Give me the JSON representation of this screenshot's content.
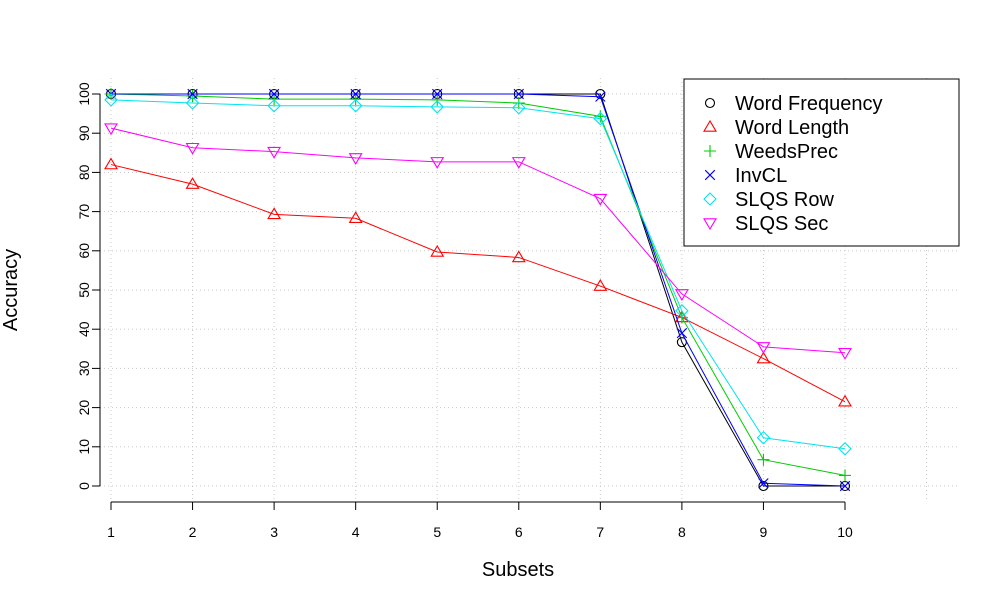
{
  "chart_data": {
    "type": "line",
    "xlabel": "Subsets",
    "ylabel": "Accuracy",
    "x": [
      1,
      2,
      3,
      4,
      5,
      6,
      7,
      8,
      9,
      10
    ],
    "ylim": [
      0,
      100
    ],
    "xlim": [
      1,
      12
    ],
    "yticks": [
      0,
      10,
      20,
      30,
      40,
      50,
      60,
      70,
      80,
      90,
      100
    ],
    "xticks": [
      1,
      2,
      3,
      4,
      5,
      6,
      7,
      8,
      9,
      10
    ],
    "grid": true,
    "legend_position": "top-right",
    "series": [
      {
        "name": "Word Frequency",
        "color": "#000000",
        "marker": "circle",
        "values": [
          100,
          100,
          100,
          100,
          100,
          100,
          100,
          36.7,
          0,
          0
        ]
      },
      {
        "name": "Word Length",
        "color": "#ff0000",
        "marker": "triangle-up",
        "values": [
          82,
          77,
          69.3,
          68.3,
          59.7,
          58.3,
          51,
          43,
          32.5,
          21.5
        ]
      },
      {
        "name": "WeedsPrec",
        "color": "#00cc00",
        "marker": "plus",
        "values": [
          100,
          99.5,
          98.7,
          98.7,
          98.5,
          97.7,
          94.3,
          43,
          6.7,
          2.7
        ]
      },
      {
        "name": "InvCL",
        "color": "#0000ff",
        "marker": "cross",
        "values": [
          100,
          100,
          100,
          100,
          100,
          100,
          99.3,
          39,
          0.7,
          0
        ]
      },
      {
        "name": "SLQS Row",
        "color": "#00e5ee",
        "marker": "diamond",
        "values": [
          98.5,
          97.7,
          97,
          97,
          96.7,
          96.5,
          93.7,
          44.7,
          12.3,
          9.5
        ]
      },
      {
        "name": "SLQS Sec",
        "color": "#ff00ff",
        "marker": "triangle-down",
        "values": [
          91.3,
          86.3,
          85.3,
          83.7,
          82.7,
          82.7,
          73.3,
          49,
          35.5,
          34
        ]
      }
    ]
  }
}
